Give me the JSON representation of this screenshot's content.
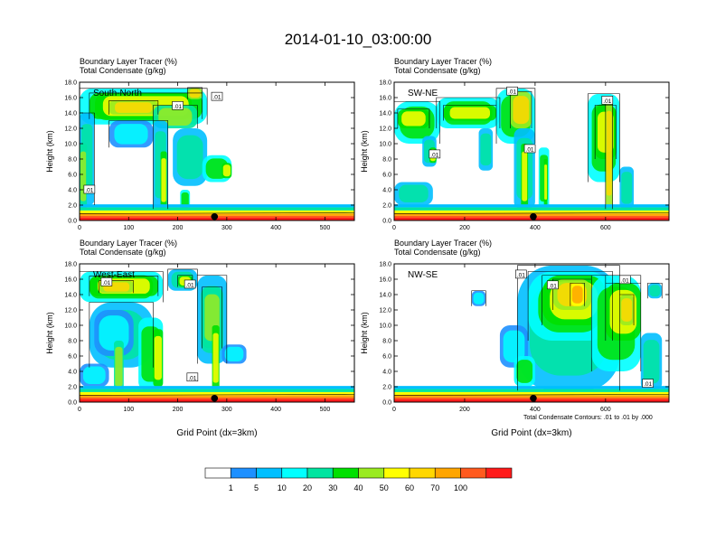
{
  "title": "2014-01-10_03:00:00",
  "footnote": "Total Condensate Contours: .01 to .01 by .000",
  "colorbar": {
    "colors": [
      "#ffffff",
      "#1e90ff",
      "#00bfff",
      "#00ffff",
      "#00e5a0",
      "#00e000",
      "#9aeb20",
      "#ffff00",
      "#ffd700",
      "#ffa500",
      "#ff5a1e",
      "#ff1a1a"
    ],
    "ticks": [
      "1",
      "5",
      "10",
      "20",
      "30",
      "40",
      "50",
      "60",
      "70",
      "100"
    ]
  },
  "chart_data": [
    {
      "type": "heatmap",
      "label": "South-North",
      "title_line1": "Boundary Layer Tracer    (%)",
      "title_line2": "Total Condensate    (g/kg)",
      "ylabel": "Height (km)",
      "xlabel": "",
      "xlim": [
        0,
        560
      ],
      "ylim": [
        0,
        18
      ],
      "xticks": [
        0,
        100,
        200,
        300,
        400,
        500
      ],
      "yticks": [
        0.0,
        2.0,
        4.0,
        6.0,
        8.0,
        10.0,
        12.0,
        14.0,
        16.0,
        18.0
      ],
      "marker_x": 275,
      "contour_labels": [
        {
          "text": ".01",
          "x": 280,
          "y": 16.1
        },
        {
          "text": ".01",
          "x": 200,
          "y": 14.9
        },
        {
          "text": ".01",
          "x": 20,
          "y": 4.0
        }
      ]
    },
    {
      "type": "heatmap",
      "label": "SW-NE",
      "title_line1": "Boundary Layer Tracer    (%)",
      "title_line2": "Total Condensate    (g/kg)",
      "ylabel": "Height (km)",
      "xlabel": "",
      "xlim": [
        0,
        780
      ],
      "ylim": [
        0,
        18
      ],
      "xticks": [
        0,
        200,
        400,
        600
      ],
      "yticks": [
        0.0,
        2.0,
        4.0,
        6.0,
        8.0,
        10.0,
        12.0,
        14.0,
        16.0,
        18.0
      ],
      "marker_x": 395,
      "contour_labels": [
        {
          "text": ".01",
          "x": 335,
          "y": 16.8
        },
        {
          "text": ".01",
          "x": 605,
          "y": 15.6
        },
        {
          "text": ".01",
          "x": 115,
          "y": 8.6
        },
        {
          "text": ".01",
          "x": 385,
          "y": 9.3
        }
      ]
    },
    {
      "type": "heatmap",
      "label": "West-East",
      "title_line1": "Boundary Layer Tracer    (%)",
      "title_line2": "Total Condensate    (g/kg)",
      "ylabel": "Height (km)",
      "xlabel": "Grid Point (dx=3km)",
      "xlim": [
        0,
        560
      ],
      "ylim": [
        0,
        18
      ],
      "xticks": [
        0,
        100,
        200,
        300,
        400,
        500
      ],
      "yticks": [
        0.0,
        2.0,
        4.0,
        6.0,
        8.0,
        10.0,
        12.0,
        14.0,
        16.0,
        18.0
      ],
      "marker_x": 275,
      "contour_labels": [
        {
          "text": ".01",
          "x": 55,
          "y": 15.6
        },
        {
          "text": ".01",
          "x": 225,
          "y": 15.3
        },
        {
          "text": ".01",
          "x": 230,
          "y": 3.2
        }
      ]
    },
    {
      "type": "heatmap",
      "label": "NW-SE",
      "title_line1": "Boundary Layer Tracer    (%)",
      "title_line2": "Total Condensate    (g/kg)",
      "ylabel": "Height (km)",
      "xlabel": "Grid Point (dx=3km)",
      "xlim": [
        0,
        780
      ],
      "ylim": [
        0,
        18
      ],
      "xticks": [
        0,
        200,
        400,
        600
      ],
      "yticks": [
        0.0,
        2.0,
        4.0,
        6.0,
        8.0,
        10.0,
        12.0,
        14.0,
        16.0,
        18.0
      ],
      "marker_x": 395,
      "contour_labels": [
        {
          "text": ".01",
          "x": 360,
          "y": 16.6
        },
        {
          "text": ".01",
          "x": 450,
          "y": 15.2
        },
        {
          "text": ".01",
          "x": 655,
          "y": 15.9
        },
        {
          "text": ".01",
          "x": 720,
          "y": 2.4
        }
      ]
    }
  ]
}
